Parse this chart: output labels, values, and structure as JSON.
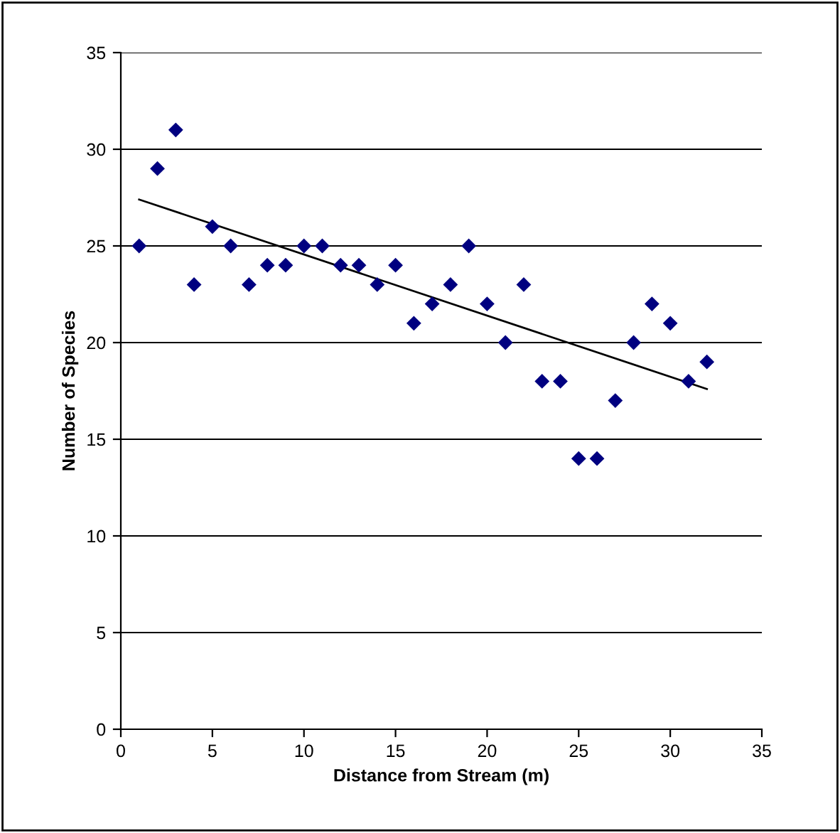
{
  "chart_data": {
    "type": "scatter",
    "xlabel": "Distance from Stream (m)",
    "ylabel": "Number of Species",
    "series": [
      {
        "color": "#000080",
        "marker": "diamond",
        "x": [
          1,
          2,
          3,
          4,
          5,
          6,
          7,
          8,
          9,
          10,
          11,
          12,
          13,
          14,
          15,
          16,
          17,
          18,
          19,
          20,
          21,
          22,
          23,
          24,
          25,
          26,
          27,
          28,
          29,
          30,
          31,
          32
        ],
        "values": [
          25,
          29,
          31,
          23,
          26,
          25,
          23,
          24,
          24,
          25,
          25,
          24,
          24,
          23,
          24,
          21,
          22,
          23,
          25,
          22,
          20,
          23,
          18,
          18,
          14,
          14,
          17,
          20,
          22,
          21,
          18,
          19
        ]
      },
      {
        "type": "line",
        "color": "#000000",
        "marker": "none",
        "line_style": "solid",
        "x": [
          1,
          32
        ],
        "values": [
          27.4,
          17.6
        ]
      }
    ],
    "xlim": [
      0,
      35
    ],
    "xticks": [
      0,
      5,
      10,
      15,
      20,
      25,
      30,
      35
    ],
    "ylim": [
      0,
      35
    ],
    "yticks": [
      0,
      5,
      10,
      15,
      20,
      25,
      30,
      35
    ],
    "grid": "y",
    "legend": false
  }
}
